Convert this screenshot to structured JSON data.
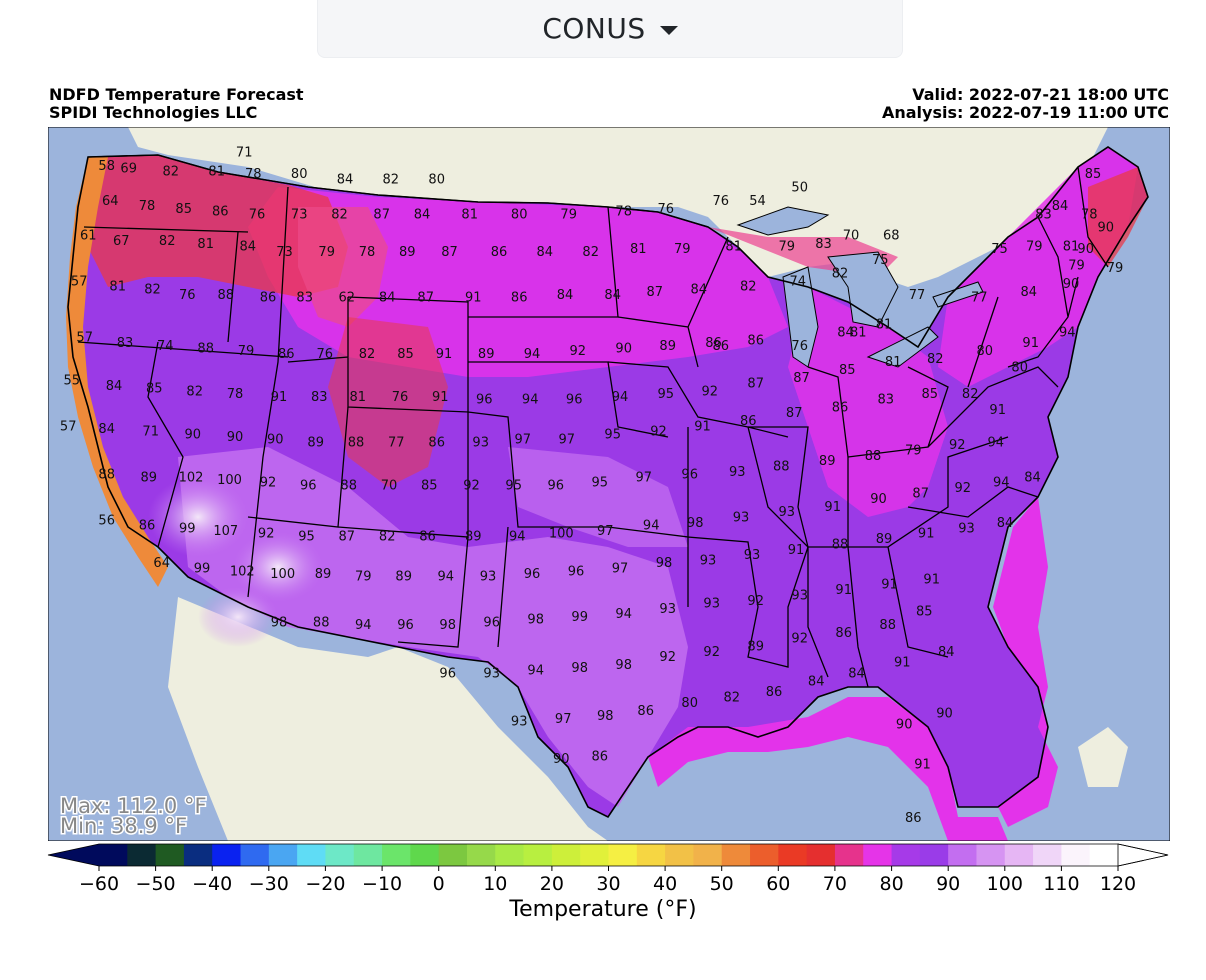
{
  "region_selector": {
    "value": "CONUS"
  },
  "header": {
    "title": "NDFD Temperature Forecast",
    "org": "SPIDI Technologies LLC",
    "valid": "Valid: 2022-07-21 18:00 UTC",
    "analysis": "Analysis: 2022-07-19 11:00 UTC"
  },
  "stats": {
    "max": "Max: 112.0 °F",
    "min": "Min: 38.9 °F"
  },
  "colorbar": {
    "label": "Temperature (°F)",
    "range": [
      -60,
      120
    ],
    "step": 5,
    "ticks": [
      -60,
      -50,
      -40,
      -30,
      -20,
      -10,
      0,
      10,
      20,
      30,
      40,
      50,
      60,
      70,
      80,
      90,
      100,
      110,
      120
    ],
    "extend": "both",
    "colors": [
      "#000a5c",
      "#0b2a33",
      "#1f5a22",
      "#0a2d80",
      "#0a22f0",
      "#2f6af0",
      "#4aa6f2",
      "#5fdcf5",
      "#6de8c7",
      "#6ee7a0",
      "#6be56a",
      "#5fd84c",
      "#7cc840",
      "#96d94a",
      "#a9ea46",
      "#b8ef40",
      "#cdef3a",
      "#e1f03a",
      "#f5ef43",
      "#f6d642",
      "#f2c147",
      "#f1b24a",
      "#ee8a3a",
      "#ec5e2c",
      "#ea3a25",
      "#e52f2f",
      "#e6338c",
      "#e534e8",
      "#a63ae8",
      "#9a3ce8",
      "#c36ef0",
      "#d694f2",
      "#e6b6f4",
      "#f0d6f8",
      "#fbf4fc",
      "#ffffff"
    ]
  },
  "state_labels": [
    {
      "lon": -116.5,
      "lat": 48.3,
      "v": "71"
    },
    {
      "lon": -124.0,
      "lat": 47.8,
      "v": "58"
    },
    {
      "lon": -122.8,
      "lat": 47.7,
      "v": "69"
    },
    {
      "lon": -120.5,
      "lat": 47.6,
      "v": "82"
    },
    {
      "lon": -118.0,
      "lat": 47.6,
      "v": "81"
    },
    {
      "lon": -116.0,
      "lat": 47.5,
      "v": "78"
    },
    {
      "lon": -113.5,
      "lat": 47.5,
      "v": "80"
    },
    {
      "lon": -111.0,
      "lat": 47.3,
      "v": "84"
    },
    {
      "lon": -108.5,
      "lat": 47.3,
      "v": "82"
    },
    {
      "lon": -106.0,
      "lat": 47.3,
      "v": "80"
    },
    {
      "lon": -123.8,
      "lat": 46.5,
      "v": "64"
    },
    {
      "lon": -121.8,
      "lat": 46.3,
      "v": "78"
    },
    {
      "lon": -119.8,
      "lat": 46.2,
      "v": "85"
    },
    {
      "lon": -117.8,
      "lat": 46.1,
      "v": "86"
    },
    {
      "lon": -115.8,
      "lat": 46.0,
      "v": "76"
    },
    {
      "lon": -113.5,
      "lat": 46.0,
      "v": "73"
    },
    {
      "lon": -111.3,
      "lat": 46.0,
      "v": "82"
    },
    {
      "lon": -109.0,
      "lat": 46.0,
      "v": "87"
    },
    {
      "lon": -106.8,
      "lat": 46.0,
      "v": "84"
    },
    {
      "lon": -104.2,
      "lat": 46.0,
      "v": "81"
    },
    {
      "lon": -101.5,
      "lat": 46.0,
      "v": "80"
    },
    {
      "lon": -98.8,
      "lat": 46.0,
      "v": "79"
    },
    {
      "lon": -95.8,
      "lat": 46.1,
      "v": "78"
    },
    {
      "lon": -93.5,
      "lat": 46.2,
      "v": "76"
    },
    {
      "lon": -90.5,
      "lat": 46.5,
      "v": "76"
    },
    {
      "lon": -88.5,
      "lat": 46.5,
      "v": "54"
    },
    {
      "lon": -86.2,
      "lat": 47.0,
      "v": "50"
    },
    {
      "lon": -125.0,
      "lat": 45.2,
      "v": "61"
    },
    {
      "lon": -123.2,
      "lat": 45.0,
      "v": "67"
    },
    {
      "lon": -120.7,
      "lat": 45.0,
      "v": "82"
    },
    {
      "lon": -118.6,
      "lat": 44.9,
      "v": "81"
    },
    {
      "lon": -116.3,
      "lat": 44.8,
      "v": "84"
    },
    {
      "lon": -114.3,
      "lat": 44.6,
      "v": "73"
    },
    {
      "lon": -112.0,
      "lat": 44.6,
      "v": "79"
    },
    {
      "lon": -109.8,
      "lat": 44.6,
      "v": "78"
    },
    {
      "lon": -107.6,
      "lat": 44.6,
      "v": "89"
    },
    {
      "lon": -105.3,
      "lat": 44.6,
      "v": "87"
    },
    {
      "lon": -102.6,
      "lat": 44.6,
      "v": "86"
    },
    {
      "lon": -100.1,
      "lat": 44.6,
      "v": "84"
    },
    {
      "lon": -97.6,
      "lat": 44.6,
      "v": "82"
    },
    {
      "lon": -95.0,
      "lat": 44.7,
      "v": "81"
    },
    {
      "lon": -92.6,
      "lat": 44.7,
      "v": "79"
    },
    {
      "lon": -89.8,
      "lat": 44.8,
      "v": "81"
    },
    {
      "lon": -86.9,
      "lat": 44.8,
      "v": "79"
    },
    {
      "lon": -84.9,
      "lat": 44.9,
      "v": "83"
    },
    {
      "lon": -83.4,
      "lat": 45.2,
      "v": "70"
    },
    {
      "lon": -81.2,
      "lat": 45.2,
      "v": "68"
    },
    {
      "lon": -75.3,
      "lat": 44.7,
      "v": "75"
    },
    {
      "lon": -73.4,
      "lat": 44.8,
      "v": "79"
    },
    {
      "lon": -71.4,
      "lat": 44.8,
      "v": "81"
    },
    {
      "lon": -69.5,
      "lat": 45.5,
      "v": "90"
    },
    {
      "lon": -125.5,
      "lat": 43.5,
      "v": "57"
    },
    {
      "lon": -123.4,
      "lat": 43.3,
      "v": "81"
    },
    {
      "lon": -121.5,
      "lat": 43.2,
      "v": "82"
    },
    {
      "lon": -119.6,
      "lat": 43.0,
      "v": "76"
    },
    {
      "lon": -117.5,
      "lat": 43.0,
      "v": "88"
    },
    {
      "lon": -115.2,
      "lat": 42.9,
      "v": "86"
    },
    {
      "lon": -113.2,
      "lat": 42.9,
      "v": "83"
    },
    {
      "lon": -110.9,
      "lat": 42.9,
      "v": "62"
    },
    {
      "lon": -108.7,
      "lat": 42.9,
      "v": "84"
    },
    {
      "lon": -106.6,
      "lat": 42.9,
      "v": "87"
    },
    {
      "lon": -104.0,
      "lat": 42.9,
      "v": "91"
    },
    {
      "lon": -101.5,
      "lat": 42.9,
      "v": "86"
    },
    {
      "lon": -99.0,
      "lat": 43.0,
      "v": "84"
    },
    {
      "lon": -96.4,
      "lat": 43.0,
      "v": "84"
    },
    {
      "lon": -94.1,
      "lat": 43.1,
      "v": "87"
    },
    {
      "lon": -91.7,
      "lat": 43.2,
      "v": "84"
    },
    {
      "lon": -89.0,
      "lat": 43.3,
      "v": "82"
    },
    {
      "lon": -86.3,
      "lat": 43.5,
      "v": "74"
    },
    {
      "lon": -84.0,
      "lat": 43.8,
      "v": "82"
    },
    {
      "lon": -81.8,
      "lat": 44.3,
      "v": "75"
    },
    {
      "lon": -79.8,
      "lat": 43.0,
      "v": "77"
    },
    {
      "lon": -76.4,
      "lat": 42.9,
      "v": "77"
    },
    {
      "lon": -73.7,
      "lat": 43.1,
      "v": "84"
    },
    {
      "lon": -71.4,
      "lat": 43.4,
      "v": "90"
    },
    {
      "lon": -125.2,
      "lat": 41.4,
      "v": "57"
    },
    {
      "lon": -123.0,
      "lat": 41.2,
      "v": "83"
    },
    {
      "lon": -120.8,
      "lat": 41.1,
      "v": "74"
    },
    {
      "lon": -118.6,
      "lat": 41.0,
      "v": "88"
    },
    {
      "lon": -116.4,
      "lat": 40.9,
      "v": "79"
    },
    {
      "lon": -114.2,
      "lat": 40.8,
      "v": "86"
    },
    {
      "lon": -112.1,
      "lat": 40.8,
      "v": "76"
    },
    {
      "lon": -109.8,
      "lat": 40.8,
      "v": "82"
    },
    {
      "lon": -107.7,
      "lat": 40.8,
      "v": "85"
    },
    {
      "lon": -105.6,
      "lat": 40.8,
      "v": "91"
    },
    {
      "lon": -103.3,
      "lat": 40.8,
      "v": "89"
    },
    {
      "lon": -100.8,
      "lat": 40.8,
      "v": "94"
    },
    {
      "lon": -98.3,
      "lat": 40.9,
      "v": "92"
    },
    {
      "lon": -95.8,
      "lat": 41.0,
      "v": "90"
    },
    {
      "lon": -93.4,
      "lat": 41.1,
      "v": "89"
    },
    {
      "lon": -90.9,
      "lat": 41.2,
      "v": "86"
    },
    {
      "lon": -88.6,
      "lat": 41.3,
      "v": "86"
    },
    {
      "lon": -86.2,
      "lat": 41.1,
      "v": "76"
    },
    {
      "lon": -83.7,
      "lat": 41.6,
      "v": "84"
    },
    {
      "lon": -81.6,
      "lat": 41.9,
      "v": "81"
    },
    {
      "lon": -76.1,
      "lat": 40.9,
      "v": "80"
    },
    {
      "lon": -73.6,
      "lat": 41.2,
      "v": "91"
    },
    {
      "lon": -71.6,
      "lat": 41.6,
      "v": "94"
    },
    {
      "lon": -125.9,
      "lat": 39.8,
      "v": "55"
    },
    {
      "lon": -123.6,
      "lat": 39.6,
      "v": "84"
    },
    {
      "lon": -121.4,
      "lat": 39.5,
      "v": "85"
    },
    {
      "lon": -119.2,
      "lat": 39.4,
      "v": "82"
    },
    {
      "lon": -117.0,
      "lat": 39.3,
      "v": "78"
    },
    {
      "lon": -114.6,
      "lat": 39.2,
      "v": "91"
    },
    {
      "lon": -112.4,
      "lat": 39.2,
      "v": "83"
    },
    {
      "lon": -110.3,
      "lat": 39.2,
      "v": "81"
    },
    {
      "lon": -108.0,
      "lat": 39.2,
      "v": "76"
    },
    {
      "lon": -105.8,
      "lat": 39.2,
      "v": "91"
    },
    {
      "lon": -103.4,
      "lat": 39.1,
      "v": "96"
    },
    {
      "lon": -100.9,
      "lat": 39.1,
      "v": "94"
    },
    {
      "lon": -98.5,
      "lat": 39.1,
      "v": "96"
    },
    {
      "lon": -96.0,
      "lat": 39.2,
      "v": "94"
    },
    {
      "lon": -93.5,
      "lat": 39.3,
      "v": "95"
    },
    {
      "lon": -91.1,
      "lat": 39.4,
      "v": "92"
    },
    {
      "lon": -88.6,
      "lat": 39.7,
      "v": "87"
    },
    {
      "lon": -86.1,
      "lat": 39.9,
      "v": "87"
    },
    {
      "lon": -83.6,
      "lat": 40.2,
      "v": "85"
    },
    {
      "lon": -81.1,
      "lat": 40.5,
      "v": "81"
    },
    {
      "lon": -78.8,
      "lat": 40.6,
      "v": "82"
    },
    {
      "lon": -74.2,
      "lat": 40.3,
      "v": "80"
    },
    {
      "lon": -126.1,
      "lat": 38.1,
      "v": "57"
    },
    {
      "lon": -124.0,
      "lat": 38.0,
      "v": "84"
    },
    {
      "lon": -121.6,
      "lat": 37.9,
      "v": "71"
    },
    {
      "lon": -119.3,
      "lat": 37.8,
      "v": "90"
    },
    {
      "lon": -117.0,
      "lat": 37.7,
      "v": "90"
    },
    {
      "lon": -114.8,
      "lat": 37.6,
      "v": "90"
    },
    {
      "lon": -112.6,
      "lat": 37.5,
      "v": "89"
    },
    {
      "lon": -110.4,
      "lat": 37.5,
      "v": "88"
    },
    {
      "lon": -108.2,
      "lat": 37.5,
      "v": "77"
    },
    {
      "lon": -106.0,
      "lat": 37.5,
      "v": "86"
    },
    {
      "lon": -103.6,
      "lat": 37.5,
      "v": "93"
    },
    {
      "lon": -101.3,
      "lat": 37.6,
      "v": "97"
    },
    {
      "lon": -98.9,
      "lat": 37.6,
      "v": "97"
    },
    {
      "lon": -96.4,
      "lat": 37.8,
      "v": "95"
    },
    {
      "lon": -93.9,
      "lat": 37.9,
      "v": "92"
    },
    {
      "lon": -91.5,
      "lat": 38.1,
      "v": "91"
    },
    {
      "lon": -89.0,
      "lat": 38.3,
      "v": "86"
    },
    {
      "lon": -86.5,
      "lat": 38.6,
      "v": "87"
    },
    {
      "lon": -84.0,
      "lat": 38.8,
      "v": "86"
    },
    {
      "lon": -81.5,
      "lat": 39.1,
      "v": "83"
    },
    {
      "lon": -79.1,
      "lat": 39.3,
      "v": "85"
    },
    {
      "lon": -76.9,
      "lat": 39.3,
      "v": "82"
    },
    {
      "lon": -75.4,
      "lat": 38.7,
      "v": "91"
    },
    {
      "lon": -124.0,
      "lat": 36.3,
      "v": "88"
    },
    {
      "lon": -121.7,
      "lat": 36.2,
      "v": "89"
    },
    {
      "lon": -119.4,
      "lat": 36.2,
      "v": "102"
    },
    {
      "lon": -117.3,
      "lat": 36.1,
      "v": "100"
    },
    {
      "lon": -115.2,
      "lat": 36.0,
      "v": "92"
    },
    {
      "lon": -113.0,
      "lat": 35.9,
      "v": "96"
    },
    {
      "lon": -110.8,
      "lat": 35.9,
      "v": "88"
    },
    {
      "lon": -108.6,
      "lat": 35.9,
      "v": "70"
    },
    {
      "lon": -106.4,
      "lat": 35.9,
      "v": "85"
    },
    {
      "lon": -104.1,
      "lat": 35.9,
      "v": "92"
    },
    {
      "lon": -101.8,
      "lat": 35.9,
      "v": "95"
    },
    {
      "lon": -99.5,
      "lat": 35.9,
      "v": "96"
    },
    {
      "lon": -97.1,
      "lat": 36.0,
      "v": "95"
    },
    {
      "lon": -94.7,
      "lat": 36.2,
      "v": "97"
    },
    {
      "lon": -92.2,
      "lat": 36.3,
      "v": "96"
    },
    {
      "lon": -89.6,
      "lat": 36.4,
      "v": "93"
    },
    {
      "lon": -87.2,
      "lat": 36.6,
      "v": "88"
    },
    {
      "lon": -84.7,
      "lat": 36.8,
      "v": "89"
    },
    {
      "lon": -82.2,
      "lat": 37.0,
      "v": "88"
    },
    {
      "lon": -80.0,
      "lat": 37.2,
      "v": "79"
    },
    {
      "lon": -77.6,
      "lat": 37.4,
      "v": "92"
    },
    {
      "lon": -75.5,
      "lat": 37.5,
      "v": "94"
    },
    {
      "lon": -124.0,
      "lat": 34.6,
      "v": "56"
    },
    {
      "lon": -121.8,
      "lat": 34.4,
      "v": "86"
    },
    {
      "lon": -119.6,
      "lat": 34.3,
      "v": "99"
    },
    {
      "lon": -117.5,
      "lat": 34.2,
      "v": "107"
    },
    {
      "lon": -115.3,
      "lat": 34.1,
      "v": "92"
    },
    {
      "lon": -113.1,
      "lat": 34.0,
      "v": "95"
    },
    {
      "lon": -110.9,
      "lat": 34.0,
      "v": "87"
    },
    {
      "lon": -108.7,
      "lat": 34.0,
      "v": "82"
    },
    {
      "lon": -106.5,
      "lat": 34.0,
      "v": "86"
    },
    {
      "lon": -104.0,
      "lat": 34.0,
      "v": "89"
    },
    {
      "lon": -101.6,
      "lat": 34.0,
      "v": "94"
    },
    {
      "lon": -99.2,
      "lat": 34.1,
      "v": "100"
    },
    {
      "lon": -96.8,
      "lat": 34.2,
      "v": "97"
    },
    {
      "lon": -94.3,
      "lat": 34.4,
      "v": "94"
    },
    {
      "lon": -91.9,
      "lat": 34.5,
      "v": "98"
    },
    {
      "lon": -89.4,
      "lat": 34.7,
      "v": "93"
    },
    {
      "lon": -86.9,
      "lat": 34.9,
      "v": "93"
    },
    {
      "lon": -84.4,
      "lat": 35.1,
      "v": "91"
    },
    {
      "lon": -81.9,
      "lat": 35.4,
      "v": "90"
    },
    {
      "lon": -79.6,
      "lat": 35.6,
      "v": "87"
    },
    {
      "lon": -77.3,
      "lat": 35.8,
      "v": "92"
    },
    {
      "lon": -75.2,
      "lat": 36.0,
      "v": "94"
    },
    {
      "lon": -73.5,
      "lat": 36.2,
      "v": "84"
    },
    {
      "lon": -121.0,
      "lat": 33.0,
      "v": "64"
    },
    {
      "lon": -118.8,
      "lat": 32.8,
      "v": "99"
    },
    {
      "lon": -116.6,
      "lat": 32.7,
      "v": "102"
    },
    {
      "lon": -114.4,
      "lat": 32.6,
      "v": "100"
    },
    {
      "lon": -112.2,
      "lat": 32.6,
      "v": "89"
    },
    {
      "lon": -110.0,
      "lat": 32.5,
      "v": "79"
    },
    {
      "lon": -107.8,
      "lat": 32.5,
      "v": "89"
    },
    {
      "lon": -105.5,
      "lat": 32.5,
      "v": "94"
    },
    {
      "lon": -103.2,
      "lat": 32.5,
      "v": "93"
    },
    {
      "lon": -100.8,
      "lat": 32.6,
      "v": "96"
    },
    {
      "lon": -98.4,
      "lat": 32.7,
      "v": "96"
    },
    {
      "lon": -96.0,
      "lat": 32.8,
      "v": "97"
    },
    {
      "lon": -93.6,
      "lat": 33.0,
      "v": "98"
    },
    {
      "lon": -91.2,
      "lat": 33.1,
      "v": "93"
    },
    {
      "lon": -88.8,
      "lat": 33.3,
      "v": "93"
    },
    {
      "lon": -86.4,
      "lat": 33.5,
      "v": "91"
    },
    {
      "lon": -84.0,
      "lat": 33.7,
      "v": "88"
    },
    {
      "lon": -81.6,
      "lat": 33.9,
      "v": "89"
    },
    {
      "lon": -79.3,
      "lat": 34.1,
      "v": "91"
    },
    {
      "lon": -77.1,
      "lat": 34.3,
      "v": "93"
    },
    {
      "lon": -75.0,
      "lat": 34.5,
      "v": "84"
    },
    {
      "lon": -114.6,
      "lat": 30.8,
      "v": "98"
    },
    {
      "lon": -112.3,
      "lat": 30.8,
      "v": "88"
    },
    {
      "lon": -110.0,
      "lat": 30.7,
      "v": "94"
    },
    {
      "lon": -107.7,
      "lat": 30.7,
      "v": "96"
    },
    {
      "lon": -105.4,
      "lat": 30.7,
      "v": "98"
    },
    {
      "lon": -103.0,
      "lat": 30.8,
      "v": "96"
    },
    {
      "lon": -100.6,
      "lat": 30.9,
      "v": "98"
    },
    {
      "lon": -98.2,
      "lat": 31.0,
      "v": "99"
    },
    {
      "lon": -95.8,
      "lat": 31.1,
      "v": "94"
    },
    {
      "lon": -93.4,
      "lat": 31.3,
      "v": "93"
    },
    {
      "lon": -91.0,
      "lat": 31.5,
      "v": "93"
    },
    {
      "lon": -88.6,
      "lat": 31.6,
      "v": "92"
    },
    {
      "lon": -86.2,
      "lat": 31.8,
      "v": "93"
    },
    {
      "lon": -83.8,
      "lat": 32.0,
      "v": "91"
    },
    {
      "lon": -81.3,
      "lat": 32.2,
      "v": "91"
    },
    {
      "lon": -79.0,
      "lat": 32.4,
      "v": "91"
    },
    {
      "lon": -105.4,
      "lat": 28.9,
      "v": "96"
    },
    {
      "lon": -103.0,
      "lat": 28.9,
      "v": "93"
    },
    {
      "lon": -100.6,
      "lat": 29.0,
      "v": "94"
    },
    {
      "lon": -98.2,
      "lat": 29.1,
      "v": "98"
    },
    {
      "lon": -95.8,
      "lat": 29.2,
      "v": "98"
    },
    {
      "lon": -93.4,
      "lat": 29.5,
      "v": "92"
    },
    {
      "lon": -91.0,
      "lat": 29.7,
      "v": "92"
    },
    {
      "lon": -88.6,
      "lat": 29.9,
      "v": "89"
    },
    {
      "lon": -86.2,
      "lat": 30.2,
      "v": "92"
    },
    {
      "lon": -83.8,
      "lat": 30.4,
      "v": "86"
    },
    {
      "lon": -81.4,
      "lat": 30.7,
      "v": "88"
    },
    {
      "lon": -79.4,
      "lat": 31.2,
      "v": "85"
    },
    {
      "lon": -101.5,
      "lat": 27.1,
      "v": "93"
    },
    {
      "lon": -99.1,
      "lat": 27.2,
      "v": "97"
    },
    {
      "lon": -96.8,
      "lat": 27.3,
      "v": "98"
    },
    {
      "lon": -94.6,
      "lat": 27.5,
      "v": "86"
    },
    {
      "lon": -92.2,
      "lat": 27.8,
      "v": "80"
    },
    {
      "lon": -89.9,
      "lat": 28.0,
      "v": "82"
    },
    {
      "lon": -87.6,
      "lat": 28.2,
      "v": "86"
    },
    {
      "lon": -85.3,
      "lat": 28.6,
      "v": "84"
    },
    {
      "lon": -83.1,
      "lat": 28.9,
      "v": "84"
    },
    {
      "lon": -80.6,
      "lat": 29.3,
      "v": "91"
    },
    {
      "lon": -78.2,
      "lat": 29.7,
      "v": "84"
    },
    {
      "lon": -99.2,
      "lat": 25.7,
      "v": "90"
    },
    {
      "lon": -97.1,
      "lat": 25.8,
      "v": "86"
    },
    {
      "lon": -80.5,
      "lat": 27.0,
      "v": "90"
    },
    {
      "lon": -78.3,
      "lat": 27.4,
      "v": "90"
    },
    {
      "lon": -79.5,
      "lat": 25.5,
      "v": "91"
    },
    {
      "lon": -80.0,
      "lat": 23.5,
      "v": "86"
    },
    {
      "lon": -70.2,
      "lat": 47.5,
      "v": "85"
    },
    {
      "lon": -72.0,
      "lat": 46.3,
      "v": "84"
    },
    {
      "lon": -70.4,
      "lat": 46.0,
      "v": "78"
    },
    {
      "lon": -69.0,
      "lat": 44.0,
      "v": "79"
    },
    {
      "lon": -70.6,
      "lat": 44.7,
      "v": "90"
    },
    {
      "lon": -72.9,
      "lat": 46.0,
      "v": "83"
    },
    {
      "lon": -71.1,
      "lat": 44.1,
      "v": "79"
    },
    {
      "lon": -90.5,
      "lat": 41.1,
      "v": "86"
    },
    {
      "lon": -83.0,
      "lat": 41.6,
      "v": "81"
    }
  ]
}
